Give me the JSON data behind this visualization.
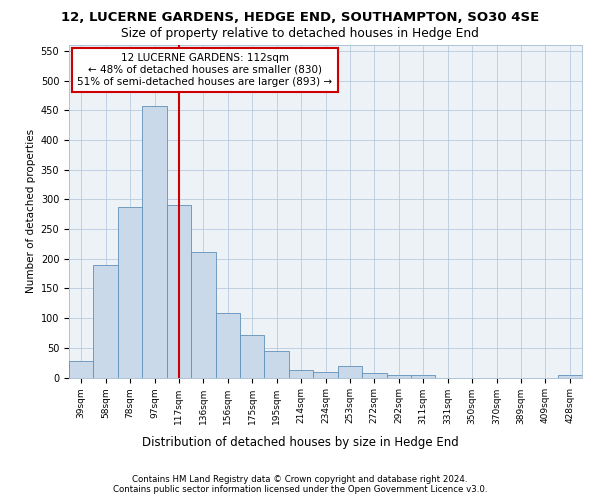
{
  "title1": "12, LUCERNE GARDENS, HEDGE END, SOUTHAMPTON, SO30 4SE",
  "title2": "Size of property relative to detached houses in Hedge End",
  "xlabel": "Distribution of detached houses by size in Hedge End",
  "ylabel": "Number of detached properties",
  "categories": [
    "39sqm",
    "58sqm",
    "78sqm",
    "97sqm",
    "117sqm",
    "136sqm",
    "156sqm",
    "175sqm",
    "195sqm",
    "214sqm",
    "234sqm",
    "253sqm",
    "272sqm",
    "292sqm",
    "311sqm",
    "331sqm",
    "350sqm",
    "370sqm",
    "389sqm",
    "409sqm",
    "428sqm"
  ],
  "values": [
    28,
    190,
    287,
    458,
    290,
    212,
    108,
    72,
    45,
    12,
    10,
    20,
    8,
    5,
    5,
    0,
    0,
    0,
    0,
    0,
    5
  ],
  "bar_color": "#c9d9ea",
  "bar_edge_color": "#6090b8",
  "vline_index": 4,
  "vline_color": "#cc0000",
  "annotation_line1": "12 LUCERNE GARDENS: 112sqm",
  "annotation_line2": "← 48% of detached houses are smaller (830)",
  "annotation_line3": "51% of semi-detached houses are larger (893) →",
  "annotation_box_color": "white",
  "annotation_box_edge": "#cc0000",
  "ylim": [
    0,
    560
  ],
  "yticks": [
    0,
    50,
    100,
    150,
    200,
    250,
    300,
    350,
    400,
    450,
    500,
    550
  ],
  "footer1": "Contains HM Land Registry data © Crown copyright and database right 2024.",
  "footer2": "Contains public sector information licensed under the Open Government Licence v3.0.",
  "bg_color": "#edf2f7",
  "grid_color": "#b0c4d8",
  "title1_fontsize": 9.5,
  "title2_fontsize": 8.8,
  "ylabel_fontsize": 7.5,
  "xlabel_fontsize": 8.5,
  "tick_fontsize": 7.0,
  "xtick_fontsize": 6.5,
  "annot_fontsize": 7.5,
  "footer_fontsize": 6.2
}
